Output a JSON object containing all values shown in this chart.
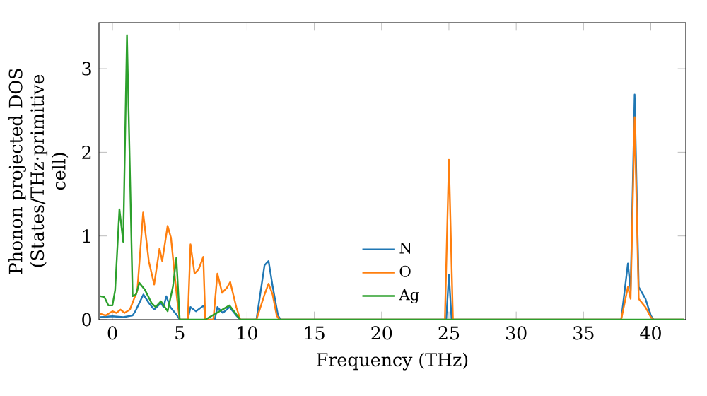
{
  "chart_data": {
    "type": "line",
    "xlabel": "Frequency (THz)",
    "ylabel": "Phonon projected DOS (States/THz·primitive cell)",
    "xlim": [
      -1,
      42.6
    ],
    "ylim": [
      0,
      3.55
    ],
    "xticks": [
      0,
      5,
      10,
      15,
      20,
      25,
      30,
      35,
      40
    ],
    "yticks": [
      0,
      1,
      2,
      3
    ],
    "grid": false,
    "legend": "bottom",
    "marker": "none",
    "line_style": "solid",
    "series": [
      {
        "name": "N",
        "color": "#1f77b4",
        "x": [
          -0.9,
          0,
          0.8,
          1.5,
          1.7,
          2.3,
          2.7,
          3.1,
          3.6,
          3.8,
          4.0,
          4.3,
          4.8,
          5.0,
          5.6,
          5.8,
          6.2,
          6.8,
          6.9,
          7.6,
          7.8,
          8.2,
          8.7,
          9.2,
          9.5,
          10.7,
          11.3,
          11.6,
          11.9,
          12.3,
          12.5,
          24.8,
          25.0,
          25.2,
          37.8,
          38.3,
          38.5,
          38.8,
          39.1,
          39.6,
          40.0,
          40.2,
          42.5
        ],
        "values": [
          0.03,
          0.04,
          0.03,
          0.05,
          0.1,
          0.3,
          0.2,
          0.12,
          0.2,
          0.15,
          0.28,
          0.15,
          0.05,
          0,
          0,
          0.15,
          0.1,
          0.17,
          0,
          0,
          0.15,
          0.08,
          0.15,
          0.05,
          0,
          0,
          0.65,
          0.7,
          0.4,
          0.05,
          0,
          0,
          0.54,
          0,
          0,
          0.67,
          0.35,
          2.69,
          0.39,
          0.25,
          0.05,
          0,
          0
        ]
      },
      {
        "name": "O",
        "color": "#ff7f0e",
        "x": [
          -0.9,
          -0.5,
          0,
          0.3,
          0.6,
          0.9,
          1.3,
          1.85,
          2.28,
          2.7,
          3.1,
          3.5,
          3.7,
          4.1,
          4.35,
          4.8,
          5.0,
          5.6,
          5.8,
          6.1,
          6.4,
          6.75,
          6.9,
          7.5,
          7.8,
          8.15,
          8.5,
          8.75,
          9.2,
          9.5,
          10.7,
          11.3,
          11.6,
          11.9,
          12.2,
          12.4,
          24.7,
          25.0,
          25.3,
          37.8,
          38.3,
          38.5,
          38.8,
          39.1,
          39.6,
          40.0,
          40.2,
          42.5
        ],
        "values": [
          0.07,
          0.05,
          0.1,
          0.08,
          0.12,
          0.08,
          0.12,
          0.35,
          1.28,
          0.7,
          0.42,
          0.85,
          0.7,
          1.12,
          0.98,
          0.25,
          0,
          0,
          0.9,
          0.55,
          0.6,
          0.75,
          0,
          0,
          0.55,
          0.32,
          0.38,
          0.45,
          0.15,
          0,
          0,
          0.3,
          0.43,
          0.3,
          0.05,
          0,
          0,
          1.91,
          0,
          0,
          0.39,
          0.25,
          2.42,
          0.25,
          0.15,
          0.03,
          0,
          0
        ]
      },
      {
        "name": "Ag",
        "color": "#2ca02c",
        "x": [
          -0.9,
          -0.6,
          -0.3,
          0,
          0.2,
          0.52,
          0.8,
          1.08,
          1.5,
          1.75,
          2.0,
          2.4,
          2.9,
          3.2,
          3.6,
          4.1,
          4.5,
          4.75,
          5.0,
          6.9,
          8.7,
          9.5,
          42.5
        ],
        "values": [
          0.28,
          0.27,
          0.17,
          0.17,
          0.35,
          1.32,
          0.93,
          3.4,
          0.28,
          0.3,
          0.44,
          0.36,
          0.2,
          0.15,
          0.22,
          0.1,
          0.4,
          0.74,
          0,
          0,
          0.17,
          0,
          0
        ]
      }
    ]
  }
}
